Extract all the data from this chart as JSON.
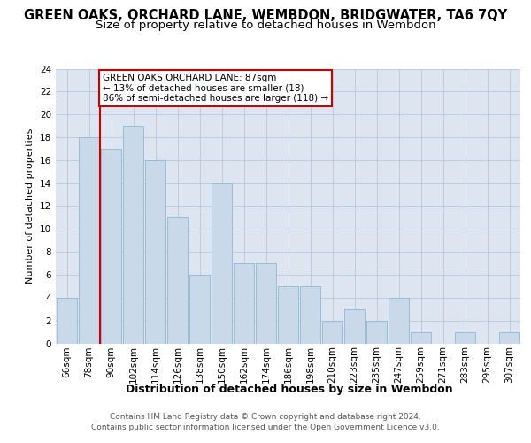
{
  "title": "GREEN OAKS, ORCHARD LANE, WEMBDON, BRIDGWATER, TA6 7QY",
  "subtitle": "Size of property relative to detached houses in Wembdon",
  "xlabel": "Distribution of detached houses by size in Wembdon",
  "ylabel": "Number of detached properties",
  "categories": [
    "66sqm",
    "78sqm",
    "90sqm",
    "102sqm",
    "114sqm",
    "126sqm",
    "138sqm",
    "150sqm",
    "162sqm",
    "174sqm",
    "186sqm",
    "198sqm",
    "210sqm",
    "223sqm",
    "235sqm",
    "247sqm",
    "259sqm",
    "271sqm",
    "283sqm",
    "295sqm",
    "307sqm"
  ],
  "values": [
    4,
    18,
    17,
    19,
    16,
    11,
    6,
    14,
    7,
    7,
    5,
    5,
    2,
    3,
    2,
    4,
    1,
    0,
    1,
    0,
    1
  ],
  "bar_color": "#c9d9ea",
  "bar_edge_color": "#90b8d4",
  "red_line_index": 2,
  "annotation_text": "GREEN OAKS ORCHARD LANE: 87sqm\n← 13% of detached houses are smaller (18)\n86% of semi-detached houses are larger (118) →",
  "annotation_box_color": "#ffffff",
  "annotation_box_edge": "#cc0000",
  "red_line_color": "#cc0000",
  "ylim": [
    0,
    24
  ],
  "yticks": [
    0,
    2,
    4,
    6,
    8,
    10,
    12,
    14,
    16,
    18,
    20,
    22,
    24
  ],
  "grid_color": "#b8c8dc",
  "background_color": "#dde6f0",
  "footer_line1": "Contains HM Land Registry data © Crown copyright and database right 2024.",
  "footer_line2": "Contains public sector information licensed under the Open Government Licence v3.0.",
  "title_fontsize": 10.5,
  "subtitle_fontsize": 9.5,
  "xlabel_fontsize": 9,
  "ylabel_fontsize": 8,
  "tick_fontsize": 7.5,
  "footer_fontsize": 6.5,
  "annotation_fontsize": 7.5
}
